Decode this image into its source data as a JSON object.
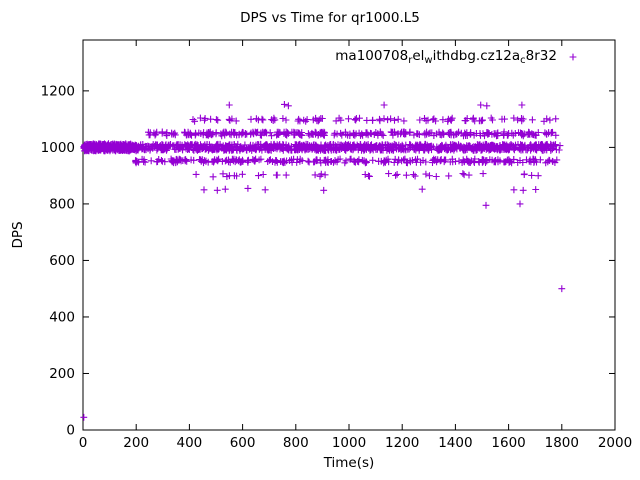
{
  "chart_data": {
    "type": "scatter",
    "title": "DPS vs Time for qr1000.L5",
    "xlabel": "Time(s)",
    "ylabel": "DPS",
    "xlim": [
      0,
      2000
    ],
    "ylim": [
      0,
      1380
    ],
    "xticks": [
      0,
      200,
      400,
      600,
      800,
      1000,
      1200,
      1400,
      1600,
      1800,
      2000
    ],
    "yticks": [
      0,
      200,
      400,
      600,
      800,
      1000,
      1200
    ],
    "grid": false,
    "legend_position": "top-right-inside",
    "marker": "plus",
    "color": "#9400d3",
    "series_name": "ma100708_rel_withdbg.cz12a_c8r32",
    "seed": 20107,
    "bands": [
      {
        "y": 1000,
        "x0": 2,
        "x1": 1795,
        "n": 1100,
        "jy": 11
      },
      {
        "y": 1000,
        "x0": 2,
        "x1": 205,
        "n": 250,
        "jy": 13
      },
      {
        "y": 952,
        "x0": 195,
        "x1": 1790,
        "n": 280,
        "jy": 7
      },
      {
        "y": 1048,
        "x0": 235,
        "x1": 1790,
        "n": 300,
        "jy": 7
      },
      {
        "y": 1098,
        "x0": 395,
        "x1": 1785,
        "n": 95,
        "jy": 6
      },
      {
        "y": 902,
        "x0": 425,
        "x1": 1770,
        "n": 38,
        "jy": 6
      }
    ],
    "points": [
      [
        3,
        45
      ],
      [
        550,
        1150
      ],
      [
        757,
        1152
      ],
      [
        772,
        1147
      ],
      [
        1132,
        1150
      ],
      [
        1495,
        1150
      ],
      [
        1518,
        1147
      ],
      [
        1650,
        1150
      ],
      [
        455,
        850
      ],
      [
        505,
        848
      ],
      [
        535,
        852
      ],
      [
        620,
        855
      ],
      [
        685,
        850
      ],
      [
        905,
        848
      ],
      [
        1275,
        852
      ],
      [
        1620,
        850
      ],
      [
        1655,
        848
      ],
      [
        1702,
        851
      ],
      [
        1515,
        795
      ],
      [
        1643,
        800
      ],
      [
        1800,
        500
      ]
    ]
  },
  "legend": {
    "parts": [
      {
        "t": "ma100708"
      },
      {
        "t": "r",
        "sub": true
      },
      {
        "t": "el"
      },
      {
        "t": "w",
        "sub": true
      },
      {
        "t": "ithdbg.cz12a"
      },
      {
        "t": "c",
        "sub": true
      },
      {
        "t": "8r32"
      }
    ]
  }
}
